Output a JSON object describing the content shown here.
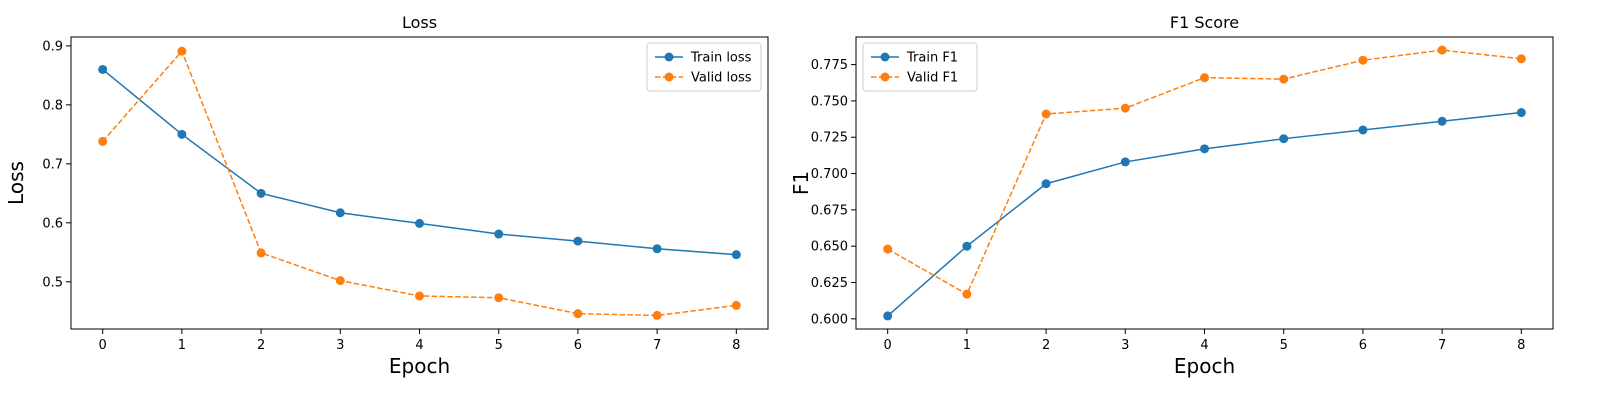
{
  "chart_data": [
    {
      "type": "line",
      "title": "Loss",
      "xlabel": "Epoch",
      "ylabel": "Loss",
      "x": [
        0,
        1,
        2,
        3,
        4,
        5,
        6,
        7,
        8
      ],
      "xlim": [
        -0.4,
        8.4
      ],
      "ylim": [
        0.42,
        0.915
      ],
      "yticks": [
        0.5,
        0.6,
        0.7,
        0.8,
        0.9
      ],
      "ytick_labels": [
        "0.5",
        "0.6",
        "0.7",
        "0.8",
        "0.9"
      ],
      "xticks": [
        0,
        1,
        2,
        3,
        4,
        5,
        6,
        7,
        8
      ],
      "xtick_labels": [
        "0",
        "1",
        "2",
        "3",
        "4",
        "5",
        "6",
        "7",
        "8"
      ],
      "legend_position": "top-right",
      "grid": false,
      "series": [
        {
          "name": "Train loss",
          "values": [
            0.86,
            0.75,
            0.65,
            0.617,
            0.599,
            0.581,
            0.569,
            0.556,
            0.546
          ],
          "color": "#1f77b4",
          "dash": "solid"
        },
        {
          "name": "Valid loss",
          "values": [
            0.738,
            0.891,
            0.549,
            0.502,
            0.476,
            0.473,
            0.446,
            0.443,
            0.46
          ],
          "color": "#ff7f0e",
          "dash": "dashed"
        }
      ]
    },
    {
      "type": "line",
      "title": "F1 Score",
      "xlabel": "Epoch",
      "ylabel": "F1",
      "x": [
        0,
        1,
        2,
        3,
        4,
        5,
        6,
        7,
        8
      ],
      "xlim": [
        -0.4,
        8.4
      ],
      "ylim": [
        0.593,
        0.794
      ],
      "yticks": [
        0.6,
        0.625,
        0.65,
        0.675,
        0.7,
        0.725,
        0.75,
        0.775
      ],
      "ytick_labels": [
        "0.600",
        "0.625",
        "0.650",
        "0.675",
        "0.700",
        "0.725",
        "0.750",
        "0.775"
      ],
      "xticks": [
        0,
        1,
        2,
        3,
        4,
        5,
        6,
        7,
        8
      ],
      "xtick_labels": [
        "0",
        "1",
        "2",
        "3",
        "4",
        "5",
        "6",
        "7",
        "8"
      ],
      "legend_position": "top-left",
      "grid": false,
      "series": [
        {
          "name": "Train F1",
          "values": [
            0.602,
            0.65,
            0.693,
            0.708,
            0.717,
            0.724,
            0.73,
            0.736,
            0.742
          ],
          "color": "#1f77b4",
          "dash": "solid"
        },
        {
          "name": "Valid F1",
          "values": [
            0.648,
            0.617,
            0.741,
            0.745,
            0.766,
            0.765,
            0.778,
            0.785,
            0.779
          ],
          "color": "#ff7f0e",
          "dash": "dashed"
        }
      ]
    }
  ]
}
